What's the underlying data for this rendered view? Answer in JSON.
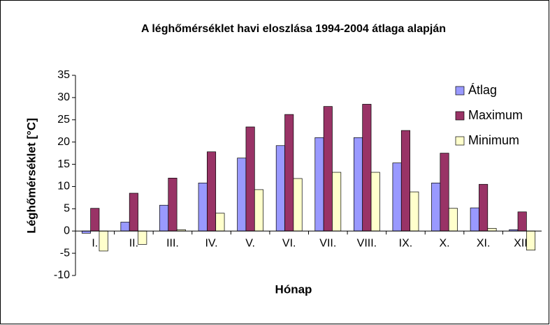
{
  "chart_data": {
    "type": "bar",
    "title": "A léghőmérséklet havi eloszlása 1994-2004 átlaga alapján",
    "x_label": "Hónap",
    "y_label": "Léghőmérséklet [°C]",
    "categories": [
      "I.",
      "II.",
      "III.",
      "IV.",
      "V.",
      "VI.",
      "VII.",
      "VIII.",
      "IX.",
      "X.",
      "XI.",
      "XII."
    ],
    "series": [
      {
        "name": "Átlag",
        "color": "#9999ff",
        "values": [
          -0.5,
          2,
          5.8,
          10.8,
          16.4,
          19.2,
          21,
          21,
          15.3,
          10.8,
          5.2,
          0.3
        ]
      },
      {
        "name": "Maximum",
        "color": "#993366",
        "values": [
          5.1,
          8.5,
          11.9,
          17.8,
          23.4,
          26.2,
          28,
          28.5,
          22.6,
          17.5,
          10.5,
          4.3
        ]
      },
      {
        "name": "Minimum",
        "color": "#ffffcc",
        "values": [
          -4.5,
          -3,
          0.3,
          4,
          9.3,
          11.8,
          13.2,
          13.2,
          8.8,
          5.1,
          0.6,
          -4.3
        ]
      }
    ],
    "ylim": [
      -10,
      35
    ],
    "yticks": [
      -10,
      -5,
      0,
      5,
      10,
      15,
      20,
      25,
      30,
      35
    ],
    "grid": false,
    "legend": "top-right"
  }
}
